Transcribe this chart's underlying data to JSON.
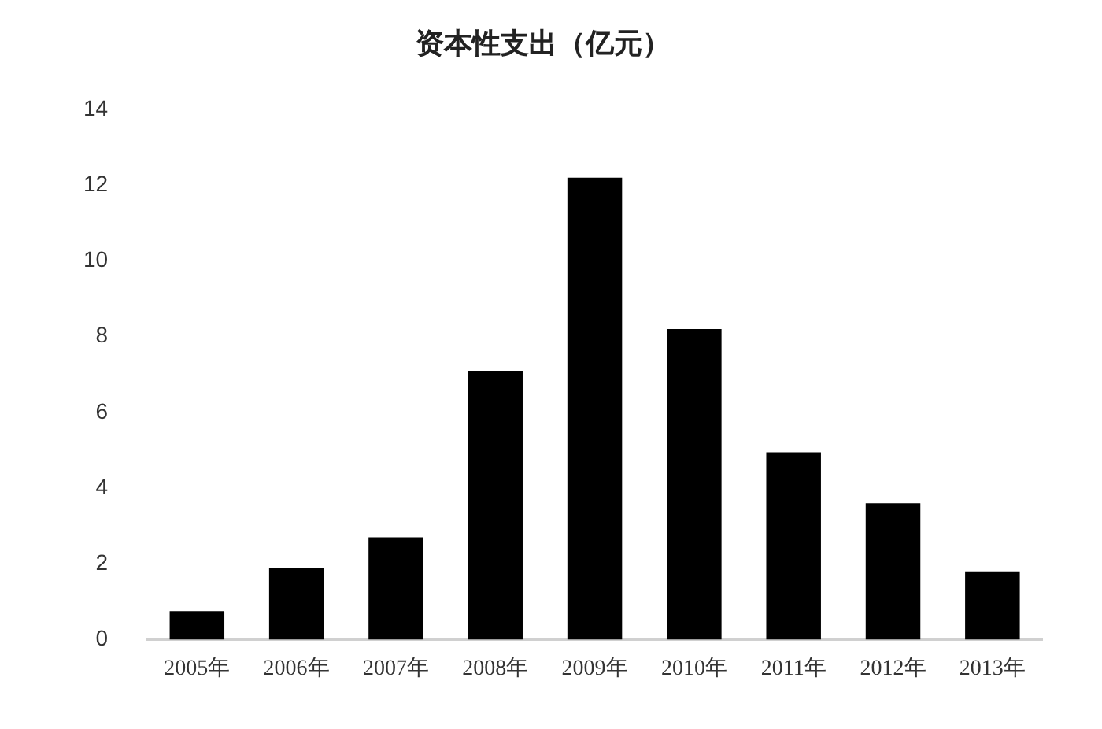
{
  "chart_data": {
    "type": "bar",
    "title": "资本性支出（亿元）",
    "categories": [
      "2005年",
      "2006年",
      "2007年",
      "2008年",
      "2009年",
      "2010年",
      "2011年",
      "2012年",
      "2013年"
    ],
    "values": [
      0.75,
      1.9,
      2.7,
      7.1,
      12.2,
      8.2,
      4.95,
      3.6,
      1.8
    ],
    "color": "#000000",
    "ylim": [
      0,
      14
    ],
    "yticks": [
      0,
      2,
      4,
      6,
      8,
      10,
      12,
      14
    ],
    "grid": false,
    "legend": false
  }
}
